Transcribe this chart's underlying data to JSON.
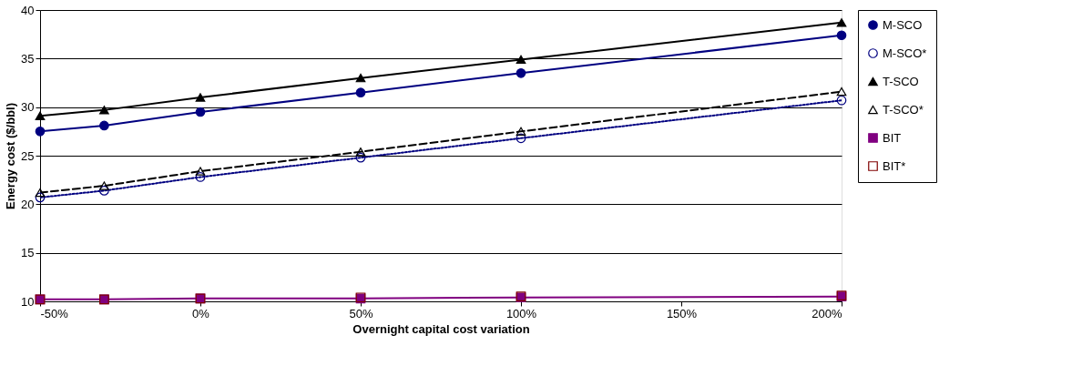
{
  "chart_data": {
    "type": "line",
    "xlabel": "Overnight capital cost variation",
    "ylabel": "Energy cost ($/bbl)",
    "x": [
      -50,
      -30,
      0,
      50,
      100,
      200
    ],
    "xlim": [
      -50,
      200
    ],
    "xticks": [
      {
        "value": -50,
        "label": "-50%"
      },
      {
        "value": 0,
        "label": "0%"
      },
      {
        "value": 50,
        "label": "50%"
      },
      {
        "value": 100,
        "label": "100%"
      },
      {
        "value": 150,
        "label": "150%"
      },
      {
        "value": 200,
        "label": "200%"
      }
    ],
    "ylim": [
      10,
      40
    ],
    "yticks": [
      10,
      15,
      20,
      25,
      30,
      35,
      40
    ],
    "grid": "y",
    "legend": "right",
    "series": [
      {
        "name": "M-SCO",
        "color": "#000080",
        "values": [
          27.5,
          28.1,
          29.5,
          31.5,
          33.5,
          37.4
        ],
        "marker": "circle",
        "line_style": "solid"
      },
      {
        "name": "M-SCO*",
        "color": "#000080",
        "values": [
          20.7,
          21.4,
          22.8,
          24.8,
          26.8,
          30.7
        ],
        "marker": "circle",
        "line_style": "dotted"
      },
      {
        "name": "T-SCO",
        "color": "#000000",
        "values": [
          29.1,
          29.7,
          31.0,
          33.0,
          34.9,
          38.7
        ],
        "marker": "triangle",
        "line_style": "solid"
      },
      {
        "name": "T-SCO*",
        "color": "#000000",
        "values": [
          21.2,
          21.9,
          23.4,
          25.4,
          27.5,
          31.6
        ],
        "marker": "triangle",
        "line_style": "dashed"
      },
      {
        "name": "BIT",
        "color": "#800080",
        "values": [
          10.2,
          10.2,
          10.3,
          10.3,
          10.4,
          10.5
        ],
        "marker": "square",
        "line_style": "solid"
      },
      {
        "name": "BIT*",
        "type": "scatter",
        "color": "#800000",
        "values": [
          10.2,
          10.2,
          10.3,
          10.4,
          10.5,
          10.6
        ],
        "marker": "square"
      }
    ]
  }
}
